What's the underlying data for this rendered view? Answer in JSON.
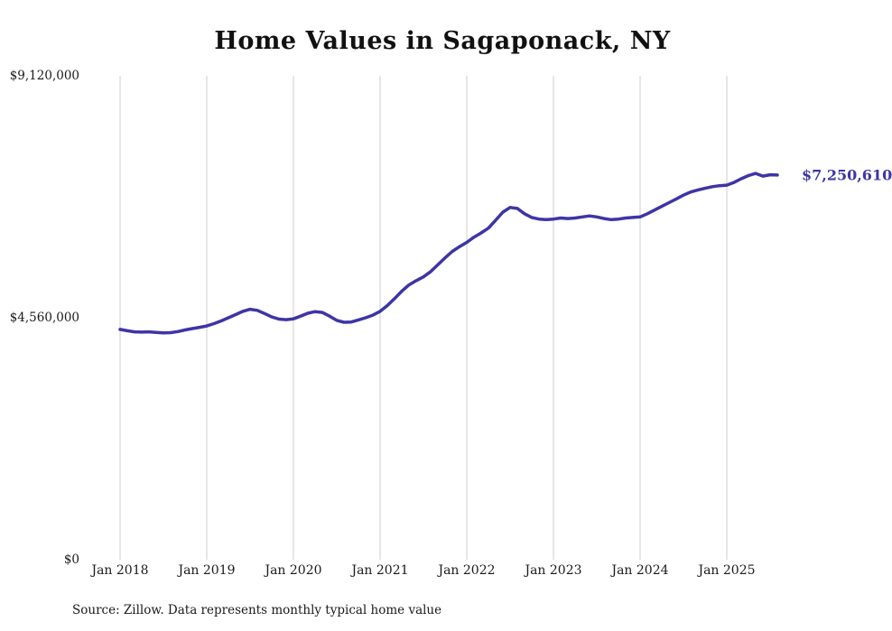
{
  "title": "Home Values in Sagaponack, NY",
  "source_note": "Source: Zillow. Data represents monthly typical home value",
  "colors": {
    "line": "#3d35a5",
    "grid": "#cccccc",
    "text": "#1a1a1a",
    "end_label": "#3d35a5",
    "background": "#ffffff"
  },
  "chart_data": {
    "type": "line",
    "title": "Home Values in Sagaponack, NY",
    "xlabel": "",
    "ylabel": "",
    "ylim": [
      0,
      9120000
    ],
    "grid": "vertical-only",
    "legend": "none",
    "x_start": "2018-01",
    "x_end": "2025-08",
    "x_tick_labels": [
      "Jan 2018",
      "Jan 2019",
      "Jan 2020",
      "Jan 2021",
      "Jan 2022",
      "Jan 2023",
      "Jan 2024",
      "Jan 2025"
    ],
    "y_ticks": [
      {
        "label": "$9,120,000",
        "value": 9120000
      },
      {
        "label": "$4,560,000",
        "value": 4560000
      },
      {
        "label": "$0",
        "value": 0
      }
    ],
    "last_value": 7250610,
    "last_value_label": "$7,250,610",
    "series": [
      {
        "name": "Monthly typical home value",
        "monthly_values": [
          4340000,
          4315000,
          4295000,
          4290000,
          4295000,
          4285000,
          4275000,
          4280000,
          4300000,
          4330000,
          4355000,
          4380000,
          4405000,
          4450000,
          4500000,
          4560000,
          4620000,
          4680000,
          4720000,
          4700000,
          4640000,
          4575000,
          4535000,
          4525000,
          4540000,
          4590000,
          4645000,
          4675000,
          4660000,
          4590000,
          4510000,
          4475000,
          4480000,
          4520000,
          4560000,
          4610000,
          4680000,
          4790000,
          4920000,
          5060000,
          5180000,
          5260000,
          5330000,
          5430000,
          5560000,
          5690000,
          5810000,
          5900000,
          5980000,
          6080000,
          6160000,
          6250000,
          6400000,
          6550000,
          6640000,
          6620000,
          6520000,
          6450000,
          6420000,
          6410000,
          6420000,
          6440000,
          6430000,
          6440000,
          6460000,
          6480000,
          6460000,
          6430000,
          6410000,
          6420000,
          6440000,
          6450000,
          6460000,
          6520000,
          6590000,
          6660000,
          6730000,
          6800000,
          6870000,
          6930000,
          6970000,
          7000000,
          7030000,
          7050000,
          7060000,
          7110000,
          7180000,
          7240000,
          7280000,
          7230000,
          7255000,
          7250610
        ]
      }
    ]
  }
}
